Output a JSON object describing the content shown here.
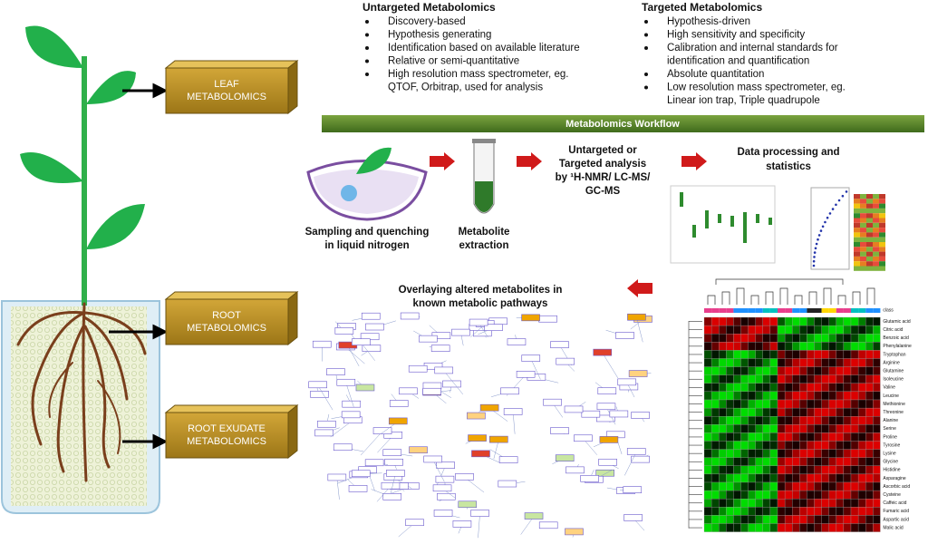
{
  "plant_labels": {
    "leaf": [
      "LEAF",
      "METABOLOMICS"
    ],
    "root": [
      "ROOT",
      "METABOLOMICS"
    ],
    "exudate": [
      "ROOT EXUDATE",
      "METABOLOMICS"
    ]
  },
  "untargeted": {
    "title": "Untargeted Metabolomics",
    "items": [
      [
        "Discovery-based"
      ],
      [
        "Hypothesis generating"
      ],
      [
        "Identification based on available literature"
      ],
      [
        "Relative or semi-quantitative"
      ],
      [
        "High resolution mass spectrometer, eg.",
        "QTOF, Orbitrap, used for analysis"
      ]
    ]
  },
  "targeted": {
    "title": "Targeted Metabolomics",
    "items": [
      [
        "Hypothesis-driven"
      ],
      [
        "High sensitivity and specificity"
      ],
      [
        "Calibration and internal standards for",
        "identification and quantification"
      ],
      [
        "Absolute quantitation"
      ],
      [
        "Low resolution mass spectrometer, eg.",
        "Linear ion trap, Triple quadrupole"
      ]
    ]
  },
  "workflow": {
    "title": "Metabolomics Workflow",
    "steps": [
      [
        "Sampling and quenching",
        "in liquid nitrogen"
      ],
      [
        "Metabolite",
        "extraction"
      ],
      [
        "Untargeted or",
        "Targeted analysis",
        "by ¹H-NMR/ LC-MS/",
        "GC-MS"
      ],
      [
        "Data processing and",
        "statistics"
      ],
      [
        "Overlaying altered metabolites in",
        "known metabolic pathways"
      ]
    ]
  },
  "heatmap": {
    "header": "class",
    "rows": [
      "Glutamic acid",
      "Citric acid",
      "Benzoic acid",
      "Phenylalanine",
      "Tryptophan",
      "Arginine",
      "Glutamine",
      "Isoleucine",
      "Valine",
      "Leucine",
      "Methionine",
      "Threonine",
      "Alanine",
      "Serine",
      "Proline",
      "Tyrosine",
      "Lysine",
      "Glycine",
      "Histidine",
      "Asparagine",
      "Ascorbic acid",
      "Cysteine",
      "Caffeic acid",
      "Fumaric acid",
      "Aspartic acid",
      "Malic acid"
    ]
  }
}
